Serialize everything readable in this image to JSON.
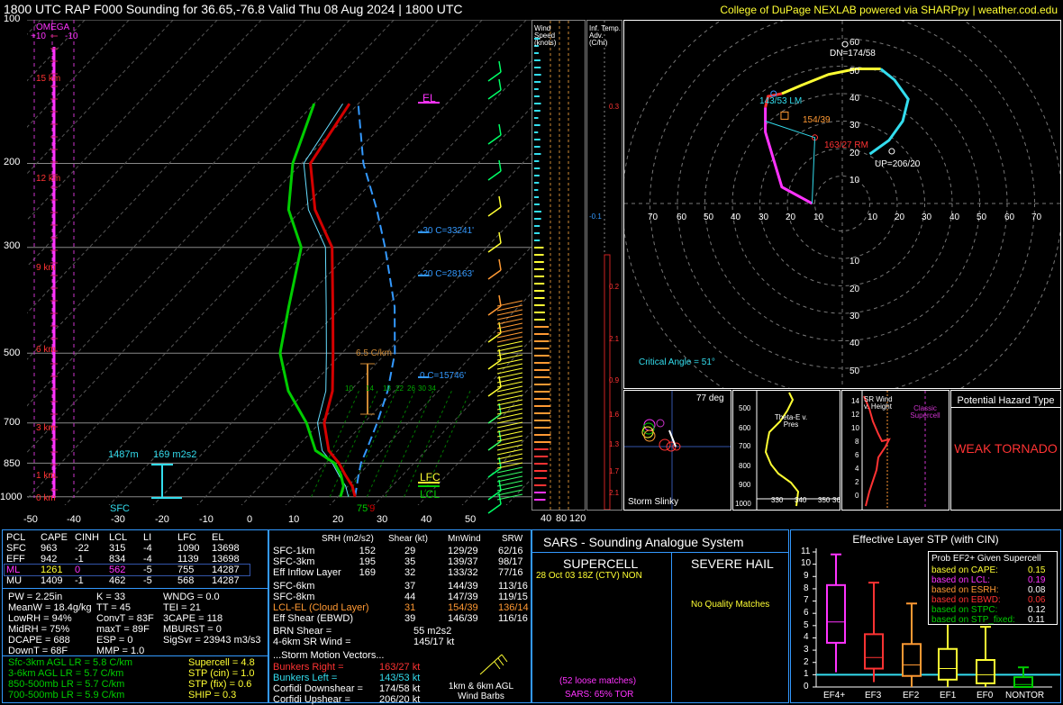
{
  "header": {
    "title": "1800 UTC RAP F000 Sounding for 36.65,-76.8 Valid  Thu 08 Aug 2024 | 1800 UTC",
    "credit": "College of DuPage NEXLAB powered via SHARPpy | weather.cod.edu"
  },
  "colors": {
    "temperature": "#d40000",
    "dewpoint": "#00cc00",
    "parcel": "#3399ff",
    "yellow": "#ffff33",
    "magenta": "#ff33ff",
    "cyan": "#33ddee",
    "orange": "#ff9933",
    "label_red": "#ff3333",
    "text": "#ffffff"
  },
  "skewt": {
    "pressure_ticks": [
      "100",
      "200",
      "300",
      "500",
      "700",
      "850",
      "1000"
    ],
    "temp_ticks": [
      "-50",
      "-40",
      "-30",
      "-20",
      "-10",
      "0",
      "10",
      "20",
      "30",
      "40",
      "50"
    ],
    "omega_label": "OMEGA",
    "omega_ticks": [
      "+10",
      "-10"
    ],
    "height_labels": [
      "15 km",
      "12 km",
      "9 km",
      "6 km",
      "3 km",
      "1 km",
      "0 km"
    ],
    "el_label": "EL",
    "lfc_label": "LFC",
    "lcl_label": "LCL",
    "sfc_label": "SFC",
    "levels": [
      "-30 C=33241'",
      "-20 C=28163'",
      "0 C=15746'"
    ],
    "lapse_label": "6.5 C/km",
    "eff_inflow_height": "1487m",
    "eff_inflow_srh": "169 m2s2",
    "sfc_temp": "75",
    "sfc_dew": "'9",
    "mixing_ratio_labels": [
      "10",
      "14",
      "18",
      "22",
      "26",
      "30",
      "34"
    ]
  },
  "wind_speed_panel": {
    "title": "Wind Speed (knots)",
    "ticks": [
      "40",
      "80",
      "120"
    ]
  },
  "inferred_adv_panel": {
    "title": "Inf. Temp. Adv. (C/hr)",
    "values": [
      "0.3",
      "-0.1",
      "0.2",
      "2.1",
      "0.9",
      "1.6",
      "1.3",
      "1.7",
      "2.1"
    ]
  },
  "hodograph": {
    "rings": [
      "60",
      "50",
      "40",
      "30",
      "20",
      "10"
    ],
    "x_ticks": [
      "70",
      "60",
      "50",
      "40",
      "30",
      "20",
      "10",
      "10",
      "20",
      "30",
      "40",
      "50",
      "60",
      "70"
    ],
    "lower_rings": [
      "10",
      "20",
      "30",
      "40",
      "50",
      "60"
    ],
    "dn": "DN=174/58",
    "lm": "143/53 LM",
    "mean": "154/39",
    "rm": "163/27 RM",
    "up": "UP=206/20",
    "critical_angle": "Critical Angle = 51°"
  },
  "storm_slinky": {
    "angle": "77 deg",
    "label": "Storm Slinky"
  },
  "theta_panel": {
    "title": "Theta-E v. Pres",
    "y_ticks": [
      "500",
      "600",
      "700",
      "800",
      "900",
      "1000"
    ],
    "x_ticks": [
      "330",
      "340",
      "350",
      "36"
    ]
  },
  "srwind_panel": {
    "title": "SR Wind v. Height",
    "y_ticks": [
      "14",
      "12",
      "10",
      "8",
      "6",
      "4",
      "2",
      "0"
    ],
    "classic_label": "Classic Supercell"
  },
  "hazard": {
    "title": "Potential Hazard Type",
    "value": "WEAK TORNADO"
  },
  "parcels": {
    "headers": [
      "PCL",
      "CAPE",
      "CINH",
      "LCL",
      "LI",
      "LFC",
      "EL"
    ],
    "rows": [
      [
        "SFC",
        "963",
        "-22",
        "315",
        "-4",
        "1090",
        "13698"
      ],
      [
        "EFF",
        "942",
        "-1",
        "834",
        "-4",
        "1139",
        "13698"
      ],
      [
        "ML",
        "1261",
        "0",
        "562",
        "-5",
        "755",
        "14287"
      ],
      [
        "MU",
        "1409",
        "-1",
        "462",
        "-5",
        "568",
        "14287"
      ]
    ]
  },
  "thermo": {
    "col1": [
      "PW = 2.25in",
      "MeanW = 18.4g/kg",
      "LowRH = 94%",
      "MidRH = 75%",
      "DCAPE = 688",
      "DownT = 68F"
    ],
    "col2": [
      "K = 33",
      "TT = 45",
      "ConvT = 83F",
      "maxT = 89F",
      "ESP = 0",
      "MMP = 1.0"
    ],
    "col3": [
      "WNDG = 0.0",
      "TEI = 21",
      "3CAPE = 118",
      "MBURST = 0",
      "",
      "SigSvr = 23943 m3/s3"
    ]
  },
  "lapse": [
    "Sfc-3km AGL LR = 5.8 C/km",
    "3-6km AGL LR = 5.7 C/km",
    "850-500mb LR = 5.7 C/km",
    "700-500mb LR = 5.9 C/km"
  ],
  "composite": [
    "Supercell = 4.8",
    "STP (cin) = 1.0",
    "STP (fix) = 0.6",
    "SHIP = 0.3"
  ],
  "kinematics": {
    "headers": [
      "SRH (m2/s2)",
      "Shear (kt)",
      "MnWind",
      "SRW"
    ],
    "rows": [
      [
        "SFC-1km",
        "152",
        "29",
        "129/29",
        "62/16"
      ],
      [
        "SFC-3km",
        "195",
        "35",
        "139/37",
        "98/17"
      ],
      [
        "Eff Inflow Layer",
        "169",
        "32",
        "133/32",
        "77/16"
      ],
      [
        "SFC-6km",
        "37",
        "144/39",
        "113/16"
      ],
      [
        "SFC-8km",
        "44",
        "147/39",
        "119/15"
      ],
      [
        "LCL-EL (Cloud Layer)",
        "31",
        "154/39",
        "136/14"
      ],
      [
        "Eff Shear (EBWD)",
        "39",
        "146/39",
        "116/16"
      ]
    ],
    "brn": [
      "BRN Shear =",
      "55 m2s2"
    ],
    "sr46": [
      "4-6km SR Wind =",
      "145/17 kt"
    ],
    "motion_title": "...Storm Motion Vectors...",
    "motion": [
      [
        "Bunkers Right =",
        "163/27 kt"
      ],
      [
        "Bunkers Left =",
        "143/53 kt"
      ],
      [
        "Corfidi Downshear =",
        "174/58 kt"
      ],
      [
        "Corfidi Upshear =",
        "206/20 kt"
      ]
    ],
    "barb_caption": "1km & 6km AGL Wind Barbs"
  },
  "sars": {
    "title": "SARS - Sounding Analogue System",
    "supercell": "SUPERCELL",
    "hail": "SEVERE HAIL",
    "match": "28 Oct 03 18Z (CTV)   NON",
    "no_quality": "No Quality Matches",
    "loose": "(52 loose matches)",
    "tor": "SARS: 65% TOR"
  },
  "stp": {
    "title": "Effective Layer STP (with CIN)",
    "legend_title": "Prob EF2+ Given Supercell",
    "legend": [
      [
        "based on CAPE:",
        "0.15"
      ],
      [
        "based on LCL:",
        "0.19"
      ],
      [
        "based on ESRH:",
        "0.08"
      ],
      [
        "based on EBWD:",
        "0.06"
      ],
      [
        "based on STPC:",
        "0.12"
      ],
      [
        "based on STP_fixed:",
        "0.11"
      ]
    ],
    "y_ticks": [
      "11",
      "10",
      "9",
      "8",
      "7",
      "6",
      "5",
      "4",
      "3",
      "2",
      "1",
      "0"
    ],
    "categories": [
      "EF4+",
      "EF3",
      "EF2",
      "EF1",
      "EF0",
      "NONTOR"
    ]
  },
  "chart_data": [
    {
      "type": "line",
      "title": "1800 UTC RAP F000 Sounding for 36.65,-76.8 Valid  Thu 08 Aug 2024 | 1800 UTC",
      "xlabel": "",
      "ylabel": "",
      "xlim": [
        -50,
        50
      ],
      "ylim": [
        1000,
        100
      ],
      "series": [
        {
          "name": "",
          "x": [
            23.9,
            21,
            17,
            13,
            8,
            1,
            -4,
            -12,
            -22,
            -35,
            -47,
            -58,
            -62
          ],
          "y": [
            1000,
            950,
            900,
            850,
            800,
            700,
            600,
            500,
            400,
            300,
            250,
            200,
            150
          ]
        },
        {
          "name": "",
          "x": [
            20.6,
            19,
            16,
            12,
            5,
            -3,
            -14,
            -24,
            -32,
            -42,
            -53,
            -62,
            -70
          ],
          "y": [
            1000,
            950,
            900,
            850,
            800,
            700,
            600,
            500,
            400,
            300,
            250,
            200,
            150
          ]
        }
      ]
    },
    {
      "type": "bar",
      "title": "Effective Layer STP (with CIN)",
      "categories": [
        "EF4+",
        "EF3",
        "EF2",
        "EF1",
        "EF0",
        "NONTOR"
      ],
      "series": [
        {
          "name": "p10",
          "values": [
            1.2,
            0.4,
            0.0,
            0.0,
            0.0,
            0.0
          ]
        },
        {
          "name": "p25",
          "values": [
            3.6,
            1.5,
            0.9,
            0.6,
            0.3,
            0.0
          ]
        },
        {
          "name": "median",
          "values": [
            5.3,
            2.4,
            1.8,
            1.5,
            1.0,
            0.2
          ]
        },
        {
          "name": "p75",
          "values": [
            8.3,
            4.3,
            3.5,
            3.1,
            2.2,
            0.8
          ]
        },
        {
          "name": "p90",
          "values": [
            10.8,
            8.5,
            6.8,
            5.6,
            4.9,
            1.6
          ]
        }
      ],
      "ylim": [
        0,
        11
      ],
      "reference_value": 1.0
    }
  ]
}
